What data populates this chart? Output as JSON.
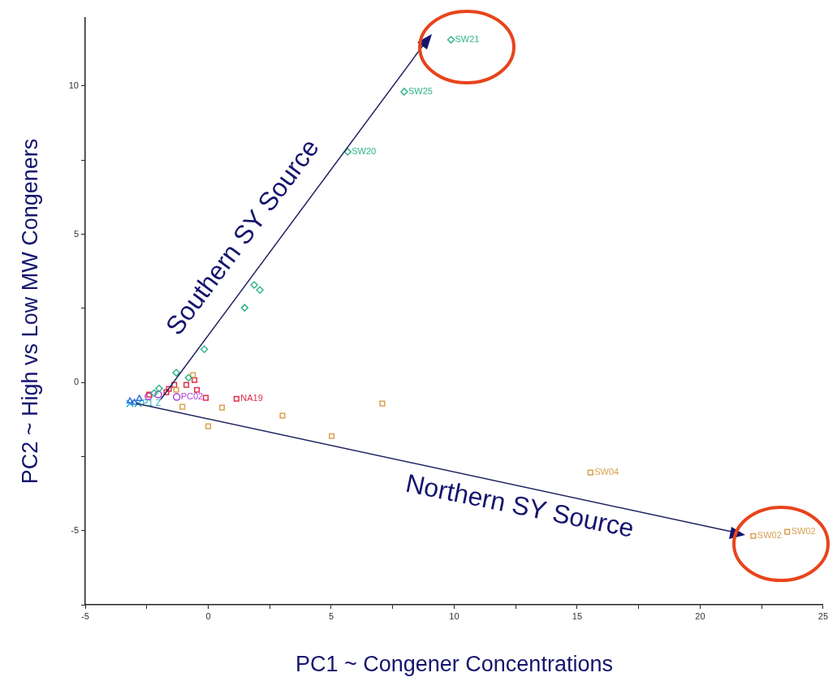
{
  "chart_data": {
    "type": "scatter",
    "xlabel": "PC1 ~ Congener Concentrations",
    "ylabel": "PC2 ~ High vs Low MW Congeners",
    "xlim": [
      -5,
      25
    ],
    "ylim": [
      -7.5,
      12.3
    ],
    "xticks": [
      -5,
      {
        "value": -2.5,
        "label": null
      },
      0,
      {
        "value": 2.5,
        "label": null
      },
      5,
      {
        "value": 7.5,
        "label": null
      },
      10,
      {
        "value": 12.5,
        "label": null
      },
      15,
      {
        "value": 17.5,
        "label": null
      },
      20,
      {
        "value": 22.5,
        "label": null
      },
      25
    ],
    "yticks": [
      {
        "value": -7.5,
        "label": null
      },
      -5,
      {
        "value": -2.5,
        "label": null
      },
      0,
      {
        "value": 2.5,
        "label": null
      },
      5,
      {
        "value": 7.5,
        "label": null
      },
      10
    ],
    "grid": false,
    "legend": false,
    "series": [
      {
        "color": "#33b58a",
        "marker": "diamond",
        "x": [
          9.87,
          7.97,
          5.67,
          1.87,
          2.1,
          1.48,
          -0.16,
          -1.3,
          -0.8,
          -2.0,
          -2.2
        ],
        "values": [
          11.56,
          9.81,
          7.78,
          3.29,
          3.12,
          2.52,
          1.12,
          0.33,
          0.16,
          -0.2,
          -0.36
        ]
      },
      {
        "color": "#d9a050",
        "marker": "square",
        "x": [
          -0.62,
          -1.3,
          -1.05,
          0.56,
          0,
          3.02,
          5.02,
          7.08,
          15.54,
          22.16,
          23.54
        ],
        "values": [
          0.25,
          -0.25,
          -0.82,
          -0.85,
          -1.48,
          -1.12,
          -1.81,
          -0.71,
          -3.04,
          -5.18,
          -5.04
        ]
      },
      {
        "color": "#e0304a",
        "marker": "square",
        "x": [
          1.15,
          -0.1,
          -0.46,
          -0.56,
          -0.89,
          -1.38,
          -1.6,
          -1.7,
          -2.4
        ],
        "values": [
          -0.55,
          -0.52,
          -0.25,
          0.08,
          -0.08,
          -0.08,
          -0.22,
          -0.33,
          -0.41
        ]
      },
      {
        "color": "#b040e0",
        "marker": "circle",
        "x": [
          -1.28,
          -2.03,
          -2.43
        ],
        "values": [
          -0.49,
          -0.41,
          -0.47
        ]
      },
      {
        "color": "#3070e0",
        "marker": "triangle",
        "x": [
          -3.18,
          -3.0,
          -2.8
        ],
        "values": [
          -0.63,
          -0.68,
          -0.55
        ]
      },
      {
        "color": "#20b0c0",
        "marker": "cross",
        "x": [
          -2.85,
          -3.18
        ],
        "values": [
          -0.71,
          -0.71
        ]
      }
    ],
    "annotations": [
      {
        "text": "SW21",
        "x": 9.87,
        "y": 11.56
      },
      {
        "text": "SW25",
        "x": 7.97,
        "y": 9.81
      },
      {
        "text": "SW20",
        "x": 5.67,
        "y": 7.78
      },
      {
        "text": "SW04",
        "x": 15.54,
        "y": -3.04
      },
      {
        "text": "SW02",
        "x": 22.16,
        "y": -5.18
      },
      {
        "text": "SW02",
        "x": 23.54,
        "y": -5.04
      },
      {
        "text": "NA19",
        "x": 1.15,
        "y": -0.55
      },
      {
        "text": "PC02",
        "x": -1.28,
        "y": -0.49
      },
      {
        "text": "P1 Z",
        "x": -2.85,
        "y": -0.71
      },
      "Southern SY Source",
      "Northern SY Source"
    ]
  }
}
